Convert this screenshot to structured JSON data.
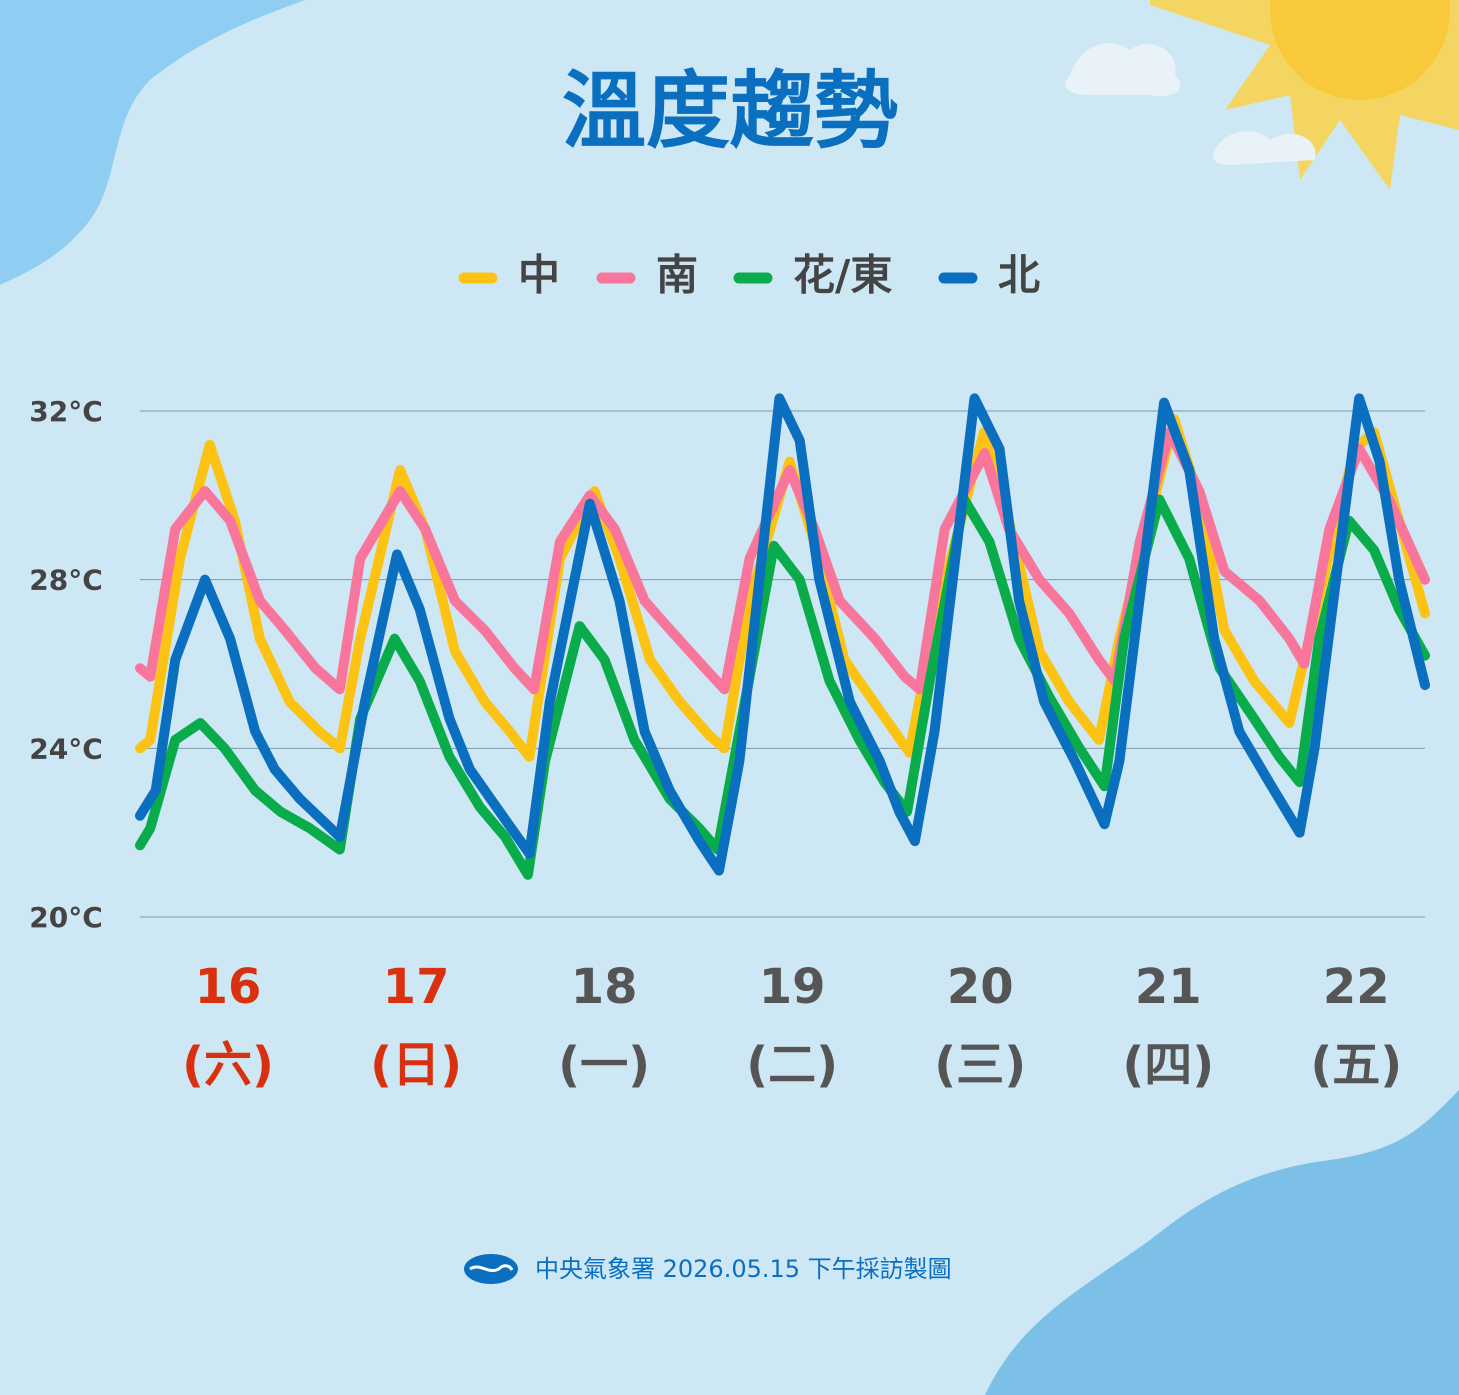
{
  "chart_data": {
    "type": "line",
    "title": "溫度趨勢",
    "footer": "中央氣象署 2026.05.15 下午採訪製圖",
    "categories": [
      "16",
      "17",
      "18",
      "19",
      "20",
      "21",
      "22"
    ],
    "weekdays": [
      "(六)",
      "(日)",
      "(一)",
      "(二)",
      "(三)",
      "(四)",
      "(五)"
    ],
    "category_colors": [
      "#d9310f",
      "#d9310f",
      "#555555",
      "#555555",
      "#555555",
      "#555555",
      "#555555"
    ],
    "xlim": [
      0,
      164
    ],
    "ylim": [
      20,
      32
    ],
    "yticks": [
      {
        "value": 32,
        "label": "32°C"
      },
      {
        "value": 28,
        "label": "28°C"
      },
      {
        "value": 24,
        "label": "24°C"
      },
      {
        "value": 20,
        "label": "20°C"
      }
    ],
    "grid": true,
    "legend": "top",
    "series": [
      {
        "name": "中",
        "color": "#fcc314",
        "x": [
          0,
          1.3,
          5.1,
          8.9,
          12.1,
          15.3,
          19.1,
          22.9,
          25.5,
          28.1,
          33.2,
          36.4,
          40.2,
          44,
          47.2,
          49.7,
          53.6,
          58,
          61.2,
          65.1,
          68.9,
          72.7,
          74.6,
          77.8,
          82.9,
          86.7,
          89.9,
          94.4,
          98.2,
          101.4,
          107.7,
          110.9,
          114.8,
          118.6,
          122.4,
          125,
          132,
          135.2,
          138.4,
          142.2,
          146.7,
          149.2,
          155,
          157.5,
          160.7,
          164
        ],
        "values": [
          24.0,
          24.2,
          28.5,
          31.2,
          29.4,
          26.6,
          25.1,
          24.4,
          24.0,
          26.6,
          30.6,
          29.2,
          26.3,
          25.1,
          24.4,
          23.8,
          28.5,
          30.1,
          28.5,
          26.1,
          25.1,
          24.3,
          24.0,
          27.5,
          30.8,
          28.5,
          26.1,
          24.9,
          23.9,
          27.0,
          31.5,
          29.4,
          26.3,
          25.1,
          24.2,
          26.6,
          31.8,
          29.9,
          26.8,
          25.6,
          24.6,
          26.6,
          31.1,
          31.5,
          29.4,
          27.2
        ]
      },
      {
        "name": "南",
        "color": "#f8759c",
        "x": [
          0,
          1.3,
          4.5,
          8.3,
          11.5,
          15.3,
          18.5,
          22.4,
          25.5,
          28.1,
          33.2,
          36.4,
          40.2,
          44,
          47.8,
          50.3,
          53.6,
          57.4,
          60.6,
          64.4,
          68.2,
          72.1,
          74.6,
          77.8,
          82.9,
          86.1,
          89.3,
          93.8,
          97.6,
          99.5,
          102.7,
          107.8,
          110.9,
          114.8,
          118.6,
          122.4,
          124.4,
          127.6,
          131.4,
          135.2,
          138.4,
          142.9,
          146.7,
          148.6,
          151.8,
          155.6,
          159.4,
          164
        ],
        "values": [
          25.9,
          25.7,
          29.2,
          30.1,
          29.4,
          27.5,
          26.8,
          25.9,
          25.4,
          28.5,
          30.1,
          29.2,
          27.5,
          26.8,
          25.9,
          25.4,
          28.9,
          30.0,
          29.2,
          27.5,
          26.7,
          25.9,
          25.4,
          28.5,
          30.6,
          29.2,
          27.5,
          26.6,
          25.7,
          25.4,
          29.2,
          31.0,
          29.2,
          28.0,
          27.2,
          26.1,
          25.6,
          28.9,
          31.5,
          30.1,
          28.2,
          27.5,
          26.6,
          26.0,
          29.2,
          31.1,
          29.9,
          28.0
        ]
      },
      {
        "name": "花/東",
        "color": "#0aab4b",
        "x": [
          0,
          1.3,
          4.5,
          7.7,
          10.8,
          14.7,
          17.9,
          21.7,
          25.5,
          28.1,
          32.5,
          35.7,
          39.5,
          43.4,
          46.6,
          49.5,
          51.7,
          56.1,
          59.3,
          63.1,
          67.6,
          71.4,
          73.7,
          76.5,
          80.9,
          84.2,
          88,
          91.8,
          95,
          97.9,
          100.8,
          105.2,
          108.4,
          112.2,
          116.1,
          119.9,
          123.1,
          125.6,
          130.1,
          133.9,
          137.8,
          142.2,
          145.4,
          148,
          150.5,
          154.3,
          157.5,
          160.7,
          164
        ],
        "values": [
          21.7,
          22.1,
          24.2,
          24.6,
          24.0,
          23.0,
          22.5,
          22.1,
          21.6,
          24.7,
          26.6,
          25.6,
          23.8,
          22.6,
          21.9,
          21.0,
          23.7,
          26.9,
          26.1,
          24.2,
          22.8,
          22.1,
          21.6,
          24.4,
          28.8,
          28.0,
          25.6,
          24.2,
          23.2,
          22.5,
          25.6,
          29.9,
          28.9,
          26.6,
          25.2,
          24.0,
          23.1,
          26.6,
          29.9,
          28.5,
          25.9,
          24.7,
          23.8,
          23.2,
          26.6,
          29.4,
          28.7,
          27.3,
          26.2
        ]
      },
      {
        "name": "北",
        "color": "#0b6fc0",
        "x": [
          0,
          2,
          4.5,
          8.3,
          11.5,
          14.7,
          17.2,
          20.4,
          25.5,
          28.7,
          32.8,
          35.7,
          39.5,
          42.1,
          45.9,
          49.7,
          52.3,
          57.4,
          61.2,
          64.4,
          67.6,
          71.4,
          73.9,
          76.5,
          81.6,
          84.2,
          86.7,
          90.6,
          94.4,
          96.9,
          98.9,
          101.4,
          106.5,
          109.7,
          112.2,
          115.4,
          119.3,
          123.1,
          125,
          130.7,
          133.9,
          137.1,
          140.3,
          144.1,
          148,
          149.9,
          155.6,
          158.2,
          160.7,
          164
        ],
        "values": [
          22.4,
          23.0,
          26.1,
          28.0,
          26.6,
          24.4,
          23.5,
          22.8,
          21.9,
          25.1,
          28.6,
          27.3,
          24.7,
          23.5,
          22.5,
          21.5,
          25.1,
          29.8,
          27.5,
          24.4,
          23.0,
          21.8,
          21.1,
          23.7,
          32.3,
          31.3,
          28.0,
          25.1,
          23.7,
          22.5,
          21.8,
          24.4,
          32.3,
          31.1,
          27.5,
          25.1,
          23.7,
          22.2,
          23.7,
          32.2,
          30.6,
          26.6,
          24.4,
          23.2,
          22.0,
          24.0,
          32.3,
          30.8,
          28.0,
          25.5
        ]
      }
    ]
  }
}
